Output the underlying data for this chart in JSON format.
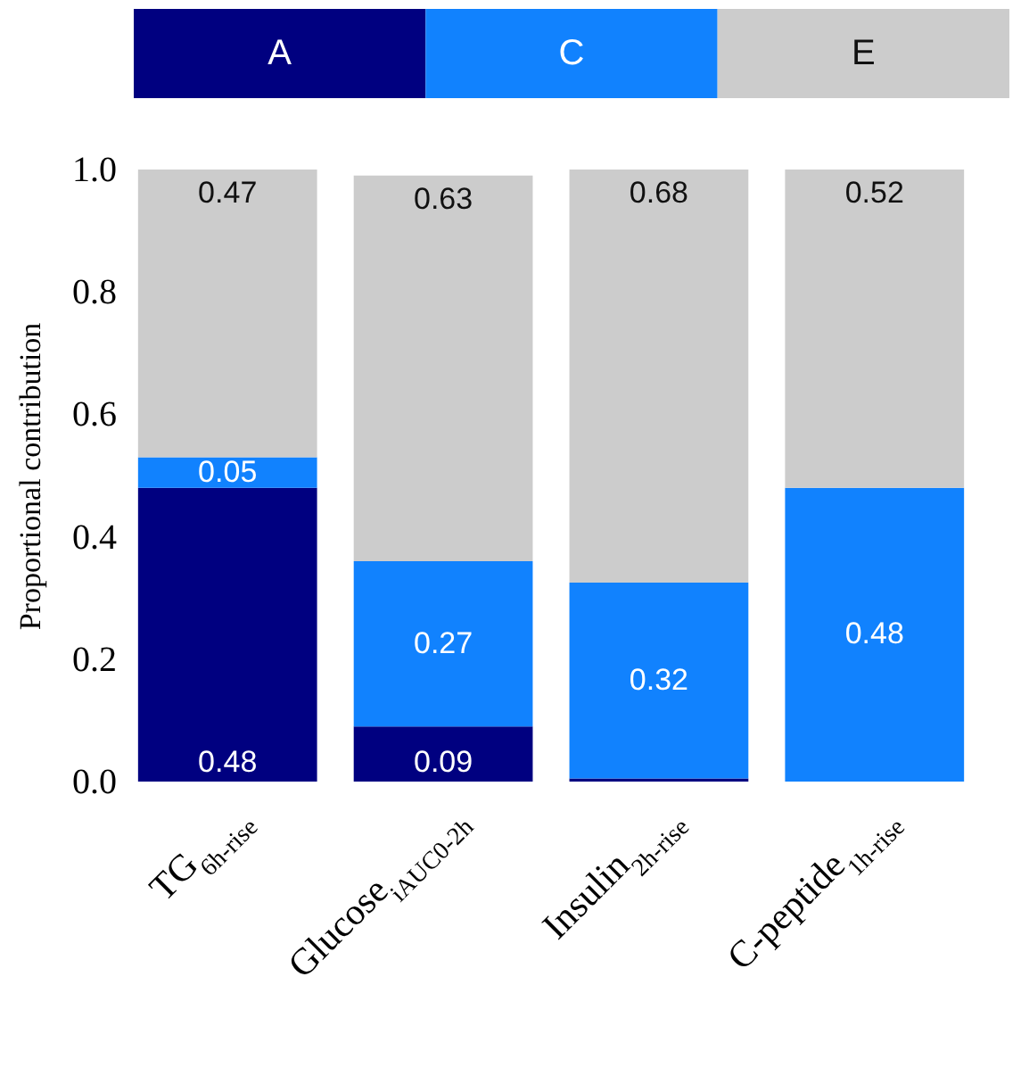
{
  "chart_data": {
    "type": "bar",
    "stacked": true,
    "ylabel": "Proportional contribution",
    "categories": [
      "TG$_{6h-rise}$",
      "Glucose$_{iAUC0-2h}$",
      "Insulin$_{2h-rise}$",
      "C-peptide$_{1h-rise}$"
    ],
    "series": [
      {
        "name": "A",
        "color": "#000080",
        "values": [
          0.48,
          0.09,
          0.005,
          0
        ],
        "value_labels": [
          "0.48",
          "0.09",
          null,
          null
        ]
      },
      {
        "name": "C",
        "color": "#1182fe",
        "values": [
          0.05,
          0.27,
          0.32,
          0.48
        ],
        "value_labels": [
          "0.05",
          "0.27",
          "0.32",
          "0.48"
        ]
      },
      {
        "name": "E",
        "color": "#cccccc",
        "values": [
          0.47,
          0.63,
          0.675,
          0.52
        ],
        "value_labels": [
          "0.47",
          "0.63",
          "0.68",
          "0.52"
        ]
      }
    ],
    "ylim": [
      0,
      1
    ],
    "yticks": [
      {
        "value": 0,
        "label": "0.0"
      },
      {
        "value": 0.2,
        "label": "0.2"
      },
      {
        "value": 0.4,
        "label": "0.4"
      },
      {
        "value": 0.6,
        "label": "0.6"
      },
      {
        "value": 0.8,
        "label": "0.8"
      },
      {
        "value": 1,
        "label": "1.0"
      }
    ],
    "grid": false,
    "legend": "top"
  }
}
